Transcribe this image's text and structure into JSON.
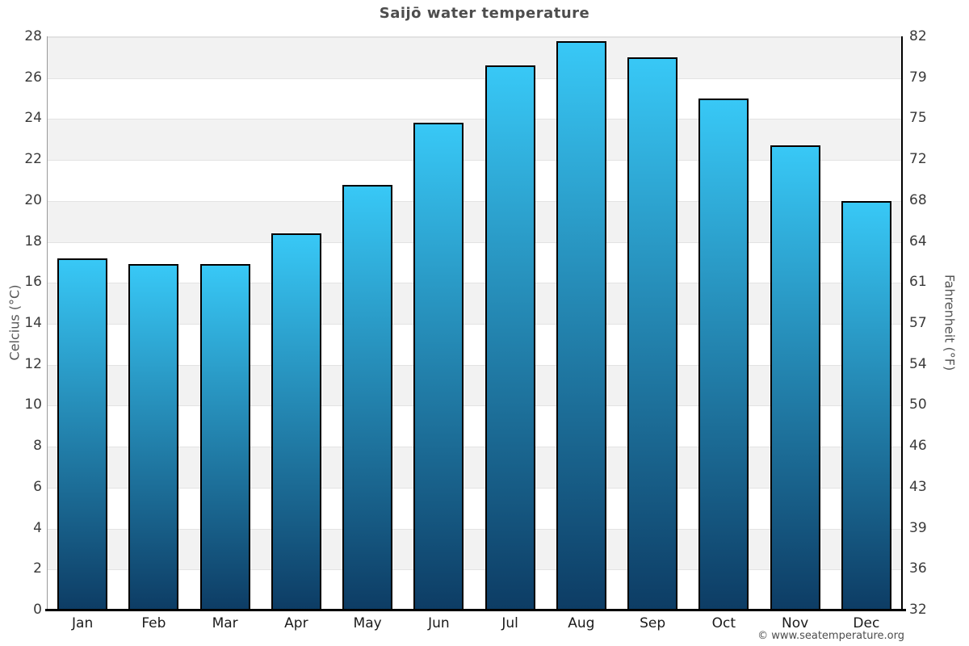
{
  "title": "Saijō water temperature",
  "footer": {
    "copyright": "© www.seatemperature.org"
  },
  "chart_data": {
    "type": "bar",
    "title": "Saijō water temperature",
    "categories": [
      "Jan",
      "Feb",
      "Mar",
      "Apr",
      "May",
      "Jun",
      "Jul",
      "Aug",
      "Sep",
      "Oct",
      "Nov",
      "Dec"
    ],
    "values": [
      17.2,
      16.9,
      16.9,
      18.4,
      20.8,
      23.8,
      26.6,
      27.8,
      27.0,
      25.0,
      22.7,
      20.0
    ],
    "ylabel_left": "Celcius (°C)",
    "ylabel_right": "Fahrenheit (°F)",
    "ylim_celsius": [
      0,
      28
    ],
    "celsius_ticks": [
      28,
      26,
      24,
      22,
      20,
      18,
      16,
      14,
      12,
      10,
      8,
      6,
      4,
      2,
      0
    ],
    "fahrenheit_ticks": [
      82,
      79,
      75,
      72,
      68,
      64,
      61,
      57,
      54,
      50,
      46,
      43,
      39,
      36,
      32
    ],
    "grid": "alternating horizontal bands every 2°C, gray band starts at 28–26",
    "legend": "none"
  },
  "colors": {
    "bar_gradient_top": "#38c8f6",
    "bar_gradient_bottom": "#0d3c64",
    "bar_border": "#000000",
    "band_gray": "#f2f2f2",
    "band_white": "#ffffff",
    "gridline": "#e3e3e3",
    "axis_left": "#999999",
    "axis_bottom": "#000000",
    "axis_right": "#000000",
    "title_text": "#4d4d4d",
    "tick_text": "#3a3a3a",
    "month_text": "#1a1a1a",
    "axis_label_text": "#555555",
    "copyright_text": "#4d4d4d",
    "background": "#ffffff"
  }
}
